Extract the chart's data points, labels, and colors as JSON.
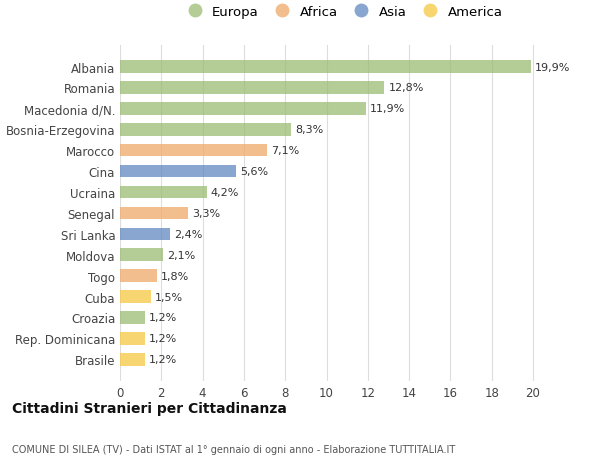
{
  "categories": [
    "Brasile",
    "Rep. Dominicana",
    "Croazia",
    "Cuba",
    "Togo",
    "Moldova",
    "Sri Lanka",
    "Senegal",
    "Ucraina",
    "Cina",
    "Marocco",
    "Bosnia-Erzegovina",
    "Macedonia d/N.",
    "Romania",
    "Albania"
  ],
  "values": [
    1.2,
    1.2,
    1.2,
    1.5,
    1.8,
    2.1,
    2.4,
    3.3,
    4.2,
    5.6,
    7.1,
    8.3,
    11.9,
    12.8,
    19.9
  ],
  "labels": [
    "1,2%",
    "1,2%",
    "1,2%",
    "1,5%",
    "1,8%",
    "2,1%",
    "2,4%",
    "3,3%",
    "4,2%",
    "5,6%",
    "7,1%",
    "8,3%",
    "11,9%",
    "12,8%",
    "19,9%"
  ],
  "continents": [
    "America",
    "America",
    "Europa",
    "America",
    "Africa",
    "Europa",
    "Asia",
    "Africa",
    "Europa",
    "Asia",
    "Africa",
    "Europa",
    "Europa",
    "Europa",
    "Europa"
  ],
  "colors": {
    "Europa": "#9BBB72",
    "Africa": "#F0A868",
    "Asia": "#6088C0",
    "America": "#F5C842"
  },
  "bar_alpha": 0.75,
  "title1": "Cittadini Stranieri per Cittadinanza",
  "title2": "COMUNE DI SILEA (TV) - Dati ISTAT al 1° gennaio di ogni anno - Elaborazione TUTTITALIA.IT",
  "xlim": [
    0,
    21.5
  ],
  "xticks": [
    0,
    2,
    4,
    6,
    8,
    10,
    12,
    14,
    16,
    18,
    20
  ],
  "background_color": "#ffffff",
  "grid_color": "#dddddd",
  "bar_height": 0.6,
  "legend_order": [
    "Europa",
    "Africa",
    "Asia",
    "America"
  ]
}
